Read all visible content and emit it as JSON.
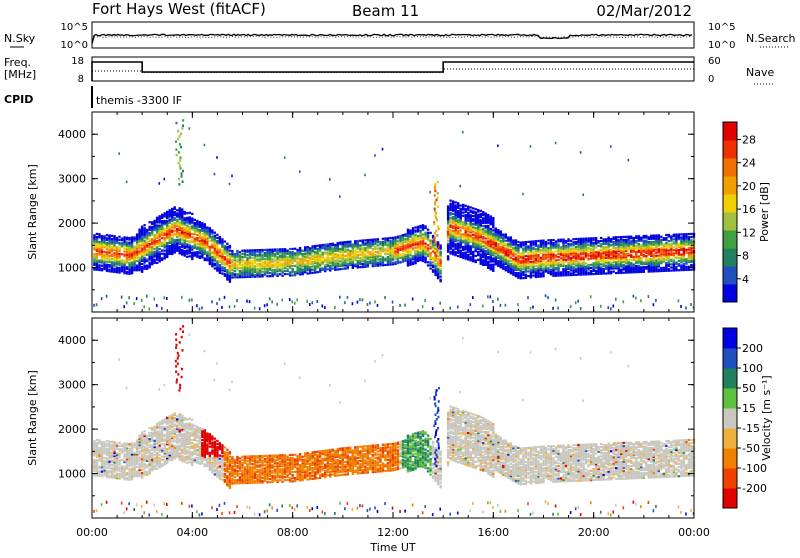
{
  "header": {
    "station": "Fort Hays West (fitACF)",
    "beam": "Beam 11",
    "date": "02/Mar/2012"
  },
  "panels": {
    "nsky": {
      "left_label": "N.Sky",
      "tick_hi": "10^5",
      "tick_lo": "10^0",
      "right_label": "N.Search",
      "right_tick_hi": "10^5",
      "right_tick_lo": "10^0"
    },
    "freq": {
      "left_label_1": "Freq.",
      "left_label_2": "[MHz]",
      "tick_hi": "18",
      "tick_lo": "8",
      "right_label": "Nave",
      "right_tick_hi": "60",
      "right_tick_lo": "0"
    },
    "cpid": {
      "label": "CPID",
      "program": "themis -3300 IF"
    }
  },
  "chart_data": [
    {
      "type": "heatmap",
      "title": "",
      "xlabel": "Time UT",
      "ylabel": "Slant Range [km]",
      "x_ticks": [
        "00:00",
        "04:00",
        "08:00",
        "12:00",
        "16:00",
        "20:00",
        "00:00"
      ],
      "xlim_hours": [
        0,
        24
      ],
      "ylim": [
        0,
        4500
      ],
      "y_ticks": [
        1000,
        2000,
        3000,
        4000
      ],
      "colorbar": {
        "label": "Power [dB]",
        "ticks": [
          4,
          8,
          12,
          16,
          20,
          24,
          28
        ],
        "range": [
          0,
          31
        ],
        "colors": [
          "#0000e0",
          "#2050c0",
          "#208060",
          "#40a040",
          "#a0c040",
          "#f0d000",
          "#f0a000",
          "#f07000",
          "#f03000",
          "#e00000"
        ]
      },
      "bands": [
        {
          "name": "",
          "points": [
            [
              0.1,
              1400
            ],
            [
              1.5,
              1300
            ],
            [
              3.3,
              1900
            ],
            [
              4.5,
              1600
            ],
            [
              5.5,
              1100
            ],
            [
              8,
              1150
            ],
            [
              10,
              1300
            ],
            [
              12,
              1400
            ],
            [
              13.2,
              1600
            ],
            [
              13.9,
              1100
            ],
            [
              14.2,
              1950
            ],
            [
              15.5,
              1700
            ],
            [
              17,
              1200
            ],
            [
              18,
              1250
            ],
            [
              20,
              1300
            ],
            [
              22,
              1350
            ],
            [
              24,
              1400
            ]
          ]
        }
      ]
    },
    {
      "type": "heatmap",
      "title": "",
      "xlabel": "Time UT",
      "ylabel": "Slant Range [km]",
      "x_ticks": [
        "00:00",
        "04:00",
        "08:00",
        "12:00",
        "16:00",
        "20:00",
        "00:00"
      ],
      "xlim_hours": [
        0,
        24
      ],
      "ylim": [
        0,
        4500
      ],
      "y_ticks": [
        1000,
        2000,
        3000,
        4000
      ],
      "colorbar": {
        "label": "Velocity [m s⁻¹]",
        "ticks": [
          -200,
          -100,
          -50,
          -15,
          15,
          50,
          100,
          200
        ],
        "colors": [
          "#e00000",
          "#f04000",
          "#f08000",
          "#f0b040",
          "#c8c8c0",
          "#60c040",
          "#208060",
          "#2050c0",
          "#0000e0"
        ]
      }
    }
  ]
}
